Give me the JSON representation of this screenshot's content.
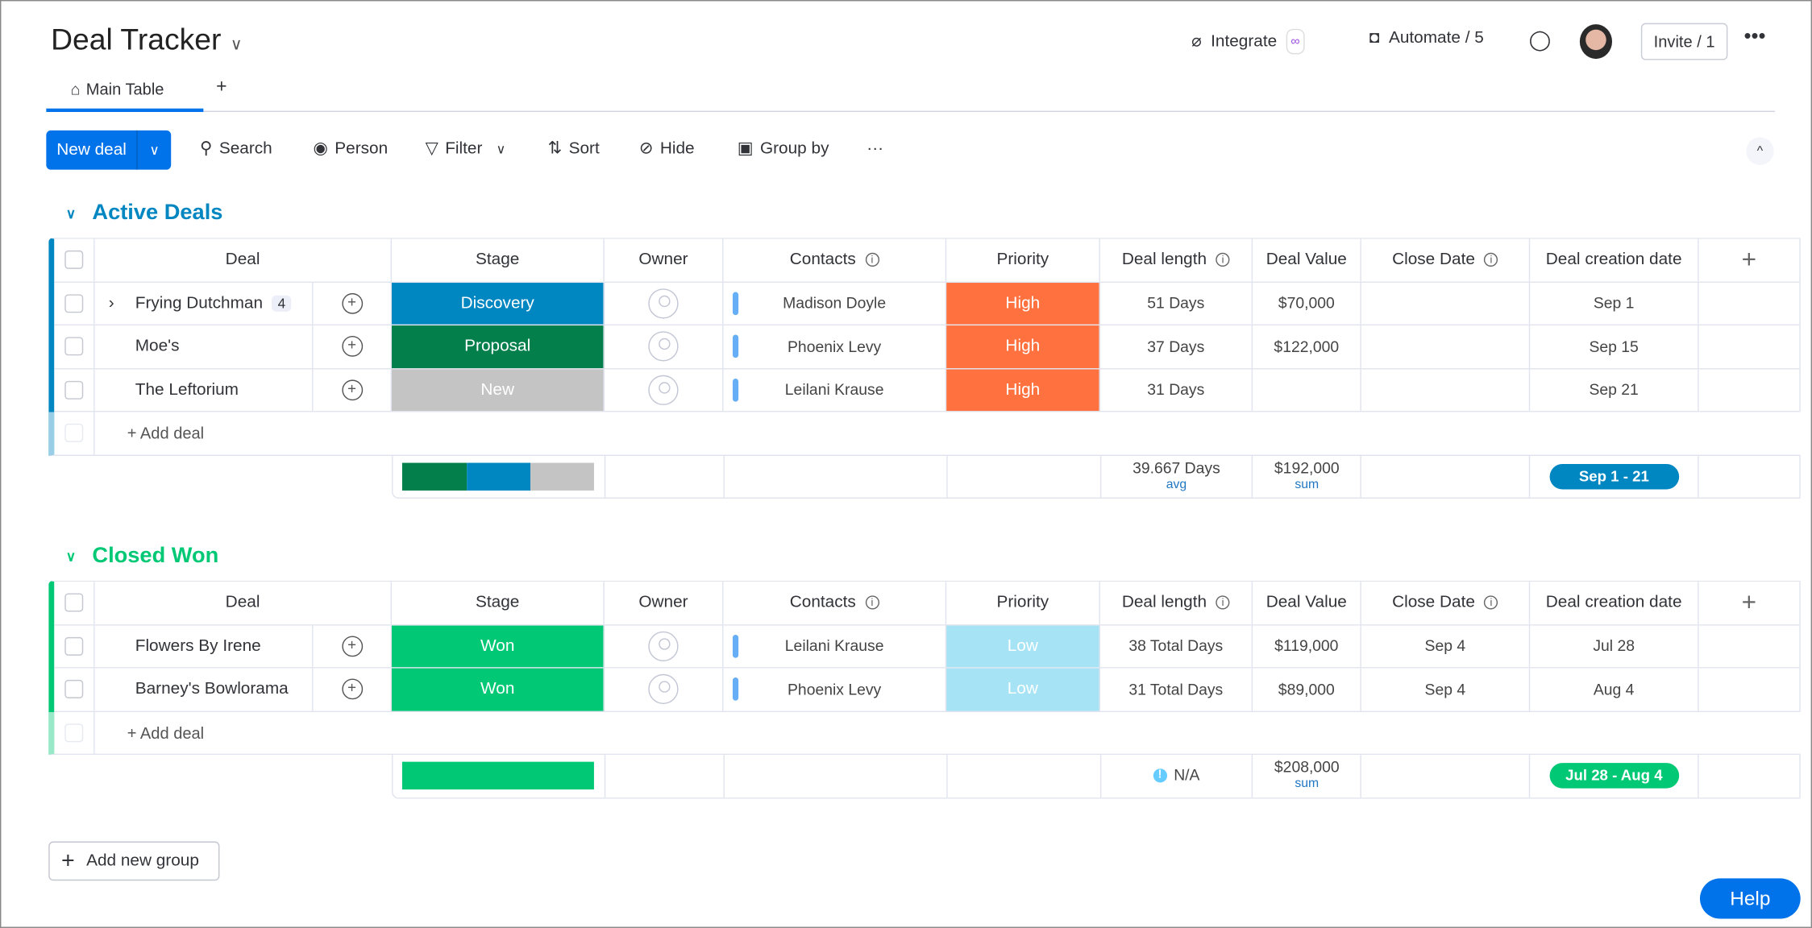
{
  "header": {
    "title": "Deal Tracker",
    "integrate": "Integrate",
    "automate": "Automate / 5",
    "invite": "Invite / 1"
  },
  "tabs": [
    {
      "label": "Main Table",
      "active": true
    }
  ],
  "toolbar": {
    "new": "New deal",
    "search": "Search",
    "person": "Person",
    "filter": "Filter",
    "sort": "Sort",
    "hide": "Hide",
    "group_by": "Group by"
  },
  "columns": [
    "Deal",
    "Stage",
    "Owner",
    "Contacts",
    "Priority",
    "Deal length",
    "Deal Value",
    "Close Date",
    "Deal creation date"
  ],
  "colors": {
    "accent": "#0073ea",
    "discovery": "#0086c0",
    "proposal": "#037f4c",
    "new": "#c4c4c4",
    "high": "#ff7240",
    "won": "#00c875",
    "low": "#9aadbd",
    "low_bg": "#a6e3f5"
  },
  "groups": [
    {
      "title": "Active Deals",
      "color": "#0086c0",
      "rows": [
        {
          "deal": "Frying Dutchman",
          "subitems": "4",
          "stage": "Discovery",
          "stage_color": "#0086c0",
          "contact": "Madison Doyle",
          "priority": "High",
          "length": "51 Days",
          "value": "$70,000",
          "close": "",
          "created": "Sep 1"
        },
        {
          "deal": "Moe's",
          "stage": "Proposal",
          "stage_color": "#037f4c",
          "contact": "Phoenix Levy",
          "priority": "High",
          "length": "37 Days",
          "value": "$122,000",
          "close": "",
          "created": "Sep 15"
        },
        {
          "deal": "The Leftorium",
          "stage": "New",
          "stage_color": "#c4c4c4",
          "contact": "Leilani Krause",
          "priority": "High",
          "length": "31 Days",
          "value": "",
          "close": "",
          "created": "Sep 21"
        }
      ],
      "add": "+ Add deal",
      "summary": {
        "length": "39.667 Days",
        "length_fn": "avg",
        "value": "$192,000",
        "value_fn": "sum",
        "dates": "Sep 1 - 21"
      }
    },
    {
      "title": "Closed Won",
      "color": "#00c875",
      "rows": [
        {
          "deal": "Flowers By Irene",
          "stage": "Won",
          "stage_color": "#00c875",
          "contact": "Leilani Krause",
          "priority": "Low",
          "length": "38 Total Days",
          "value": "$119,000",
          "close": "Sep 4",
          "created": "Jul 28"
        },
        {
          "deal": "Barney's Bowlorama",
          "stage": "Won",
          "stage_color": "#00c875",
          "contact": "Phoenix Levy",
          "priority": "Low",
          "length": "31 Total Days",
          "value": "$89,000",
          "close": "Sep 4",
          "created": "Aug 4"
        }
      ],
      "add": "+ Add deal",
      "summary": {
        "length": "N/A",
        "value": "$208,000",
        "value_fn": "sum",
        "dates": "Jul 28 - Aug 4"
      }
    }
  ],
  "add_group": "Add new group",
  "help": "Help"
}
